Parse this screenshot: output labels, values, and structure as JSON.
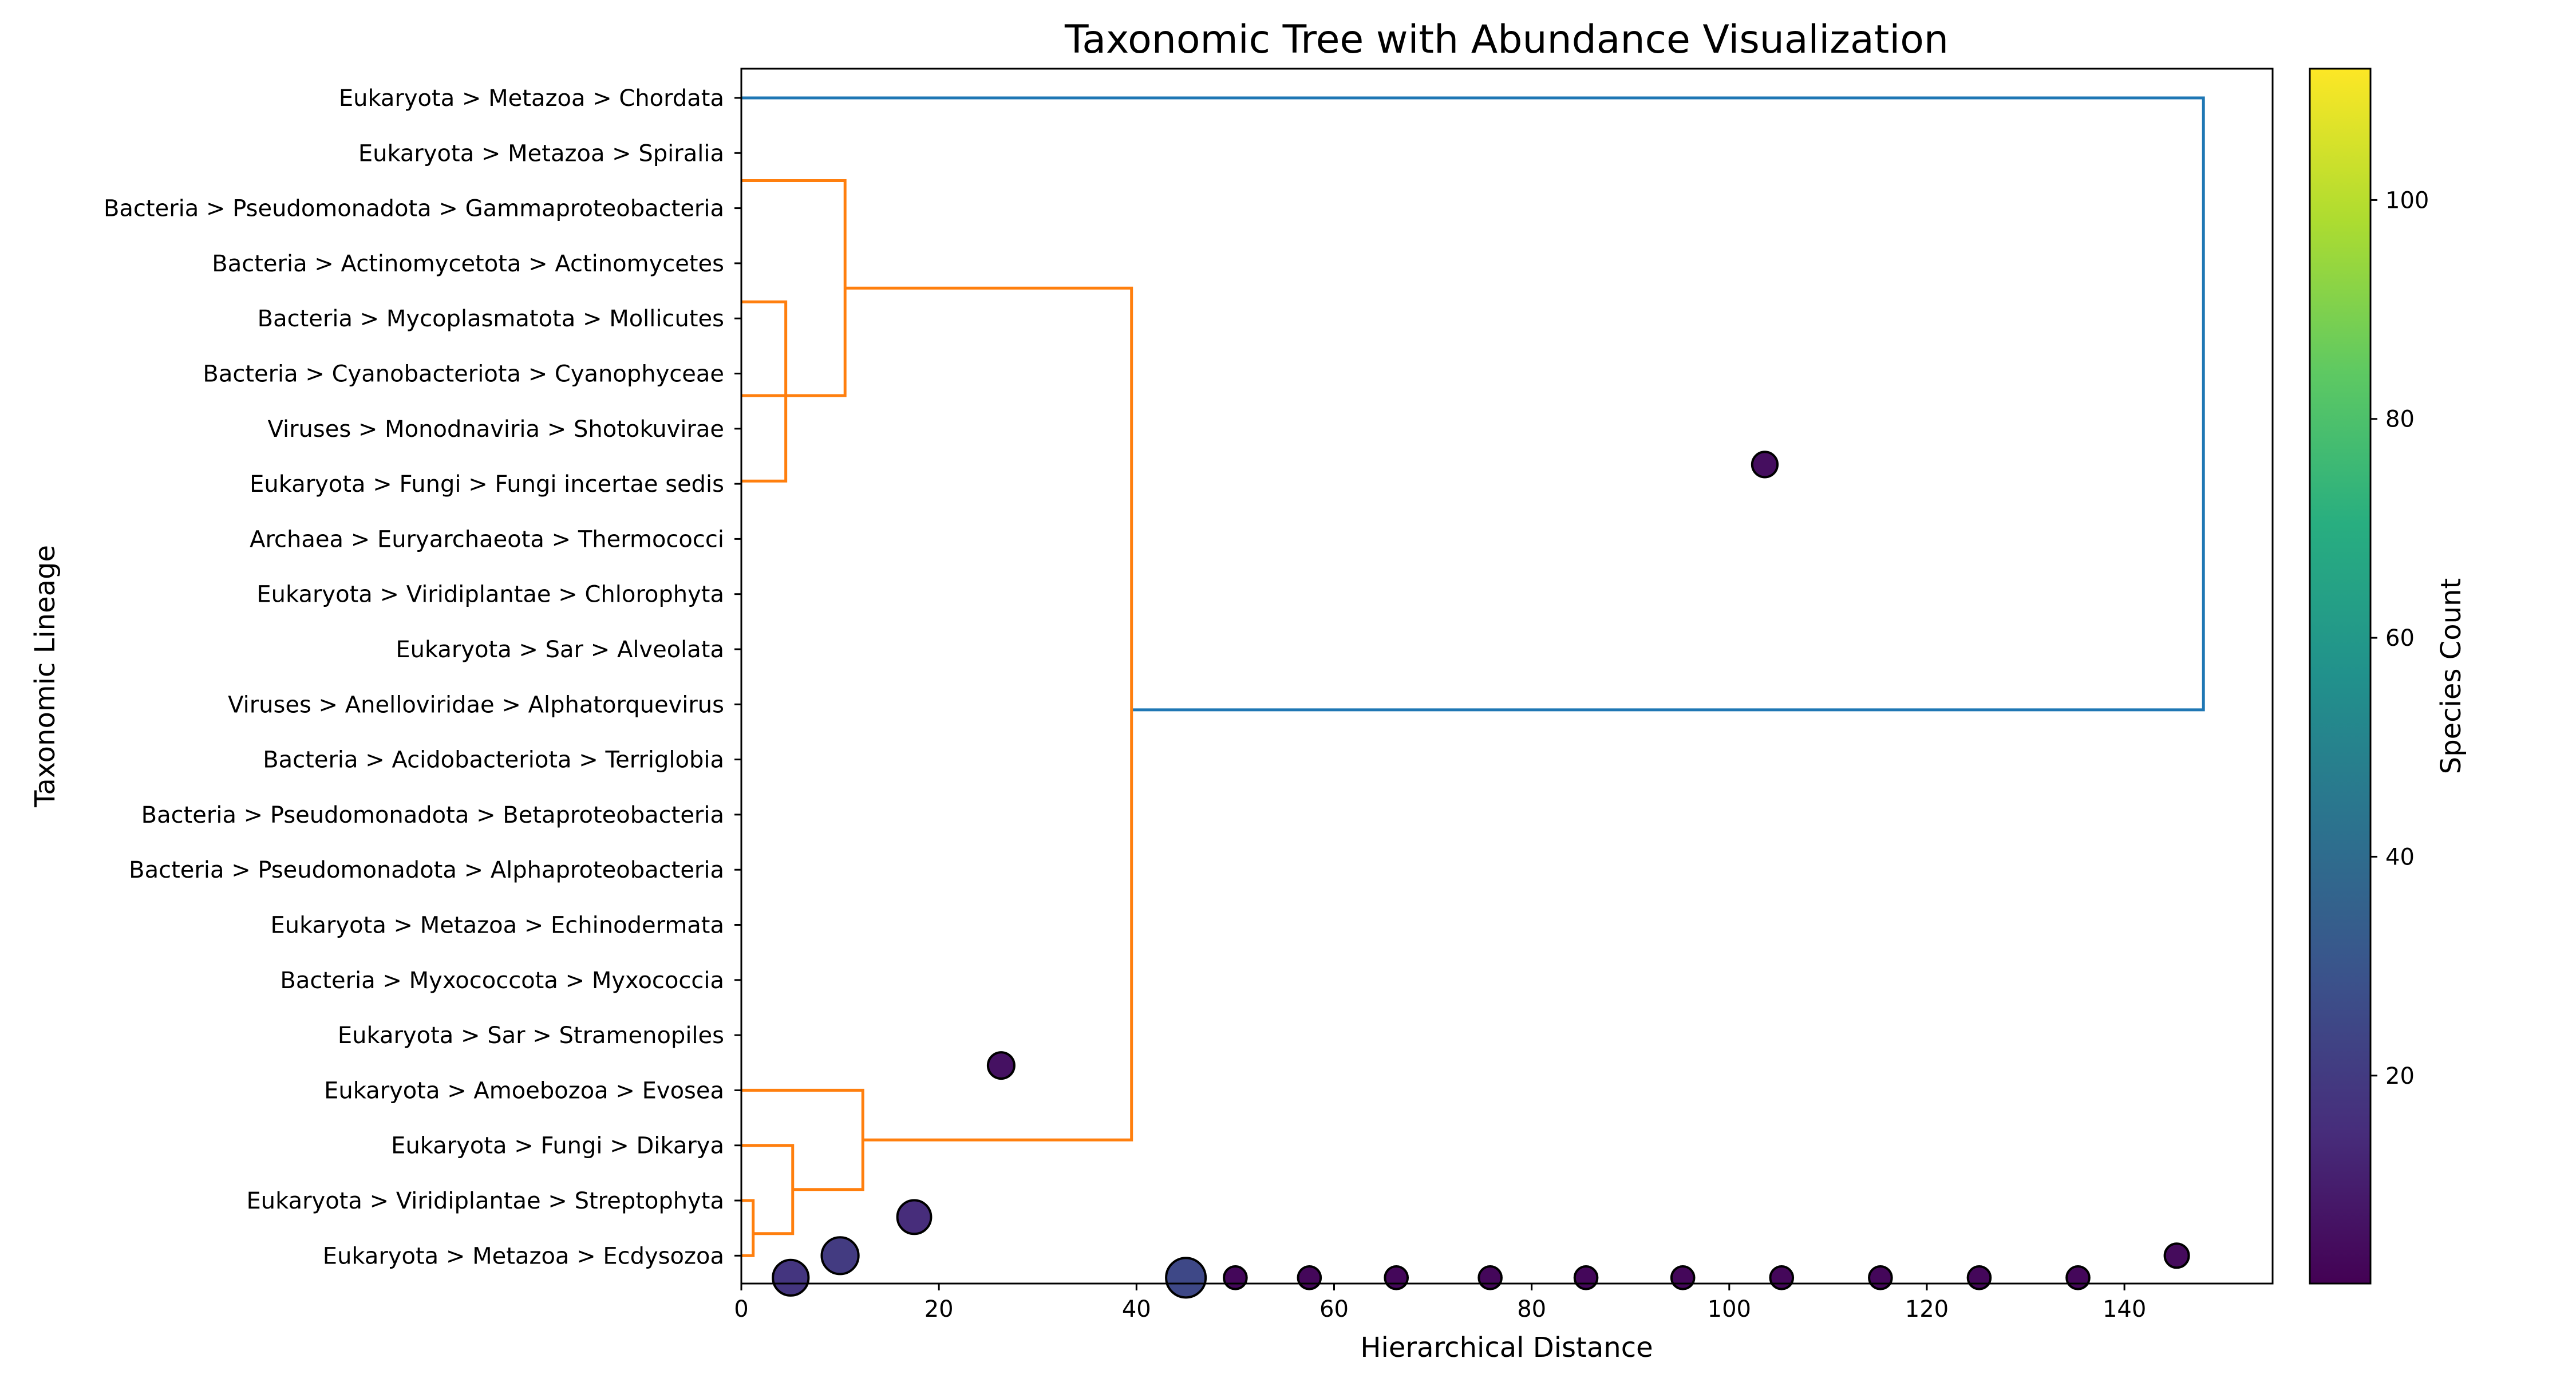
{
  "chart_data": {
    "type": "dendrogram_scatter",
    "title": "Taxonomic Tree with Abundance Visualization",
    "xlabel": "Hierarchical Distance",
    "ylabel": "Taxonomic Lineage",
    "xlim": [
      0,
      155
    ],
    "x_ticks": [
      0,
      20,
      40,
      60,
      80,
      100,
      120,
      140
    ],
    "leaves": [
      "Eukaryota > Metazoa > Chordata",
      "Eukaryota > Metazoa > Spiralia",
      "Bacteria > Pseudomonadota > Gammaproteobacteria",
      "Bacteria > Actinomycetota > Actinomycetes",
      "Bacteria > Mycoplasmatota > Mollicutes",
      "Bacteria > Cyanobacteriota > Cyanophyceae",
      "Viruses > Monodnaviria > Shotokuvirae",
      "Eukaryota > Fungi > Fungi incertae sedis",
      "Archaea > Euryarchaeota > Thermococci",
      "Eukaryota > Viridiplantae > Chlorophyta",
      "Eukaryota > Sar > Alveolata",
      "Viruses > Anelloviridae > Alphatorquevirus",
      "Bacteria > Acidobacteriota > Terriglobia",
      "Bacteria > Pseudomonadota > Betaproteobacteria",
      "Bacteria > Pseudomonadota > Alphaproteobacteria",
      "Eukaryota > Metazoa > Echinodermata",
      "Bacteria > Myxococcota > Myxococcia",
      "Eukaryota > Sar > Stramenopiles",
      "Eukaryota > Amoebozoa > Evosea",
      "Eukaryota > Fungi > Dikarya",
      "Eukaryota > Viridiplantae > Streptophyta",
      "Eukaryota > Metazoa > Ecdysozoa"
    ],
    "links": [
      {
        "color": "#1f77b4",
        "x": [
          0,
          148,
          148,
          39.5
        ],
        "y": [
          0,
          0,
          11.1,
          11.1
        ]
      },
      {
        "color": "#ff7f0e",
        "x": [
          0,
          10.5,
          10.5,
          0
        ],
        "y": [
          1.5,
          1.5,
          5.4,
          5.4
        ]
      },
      {
        "color": "#ff7f0e",
        "x": [
          0,
          4.5,
          4.5,
          0
        ],
        "y": [
          3.7,
          3.7,
          6.95,
          6.95
        ]
      },
      {
        "color": "#ff7f0e",
        "x": [
          10.5,
          39.5,
          39.5,
          12.3
        ],
        "y": [
          3.45,
          3.45,
          18.9,
          18.9
        ]
      },
      {
        "color": "#ff7f0e",
        "x": [
          0,
          12.3,
          12.3,
          5.2
        ],
        "y": [
          18,
          18,
          19.8,
          19.8
        ]
      },
      {
        "color": "#ff7f0e",
        "x": [
          0,
          5.2,
          5.2,
          1.2
        ],
        "y": [
          19,
          19,
          20.6,
          20.6
        ]
      },
      {
        "color": "#ff7f0e",
        "x": [
          0,
          1.2,
          1.2,
          0
        ],
        "y": [
          20,
          20,
          21,
          21
        ]
      }
    ],
    "points": [
      {
        "x": 5,
        "y": 21.4,
        "count": 18
      },
      {
        "x": 10,
        "y": 21,
        "count": 20
      },
      {
        "x": 17.5,
        "y": 20.3,
        "count": 15
      },
      {
        "x": 26.3,
        "y": 17.55,
        "count": 6
      },
      {
        "x": 45,
        "y": 21.4,
        "count": 25
      },
      {
        "x": 50,
        "y": 21.4,
        "count": 3
      },
      {
        "x": 57.5,
        "y": 21.4,
        "count": 3
      },
      {
        "x": 66.3,
        "y": 21.4,
        "count": 3
      },
      {
        "x": 75.8,
        "y": 21.4,
        "count": 3
      },
      {
        "x": 85.5,
        "y": 21.4,
        "count": 3
      },
      {
        "x": 95.3,
        "y": 21.4,
        "count": 3
      },
      {
        "x": 103.6,
        "y": 6.65,
        "count": 5
      },
      {
        "x": 105.3,
        "y": 21.4,
        "count": 3
      },
      {
        "x": 115.3,
        "y": 21.4,
        "count": 3
      },
      {
        "x": 125.3,
        "y": 21.4,
        "count": 3
      },
      {
        "x": 135.3,
        "y": 21.4,
        "count": 3
      },
      {
        "x": 145.3,
        "y": 21,
        "count": 4
      }
    ],
    "colorbar": {
      "label": "Species Count",
      "colormap": "viridis",
      "min": 1,
      "max": 112,
      "ticks": [
        20,
        40,
        60,
        80,
        100
      ]
    },
    "grid": false
  }
}
